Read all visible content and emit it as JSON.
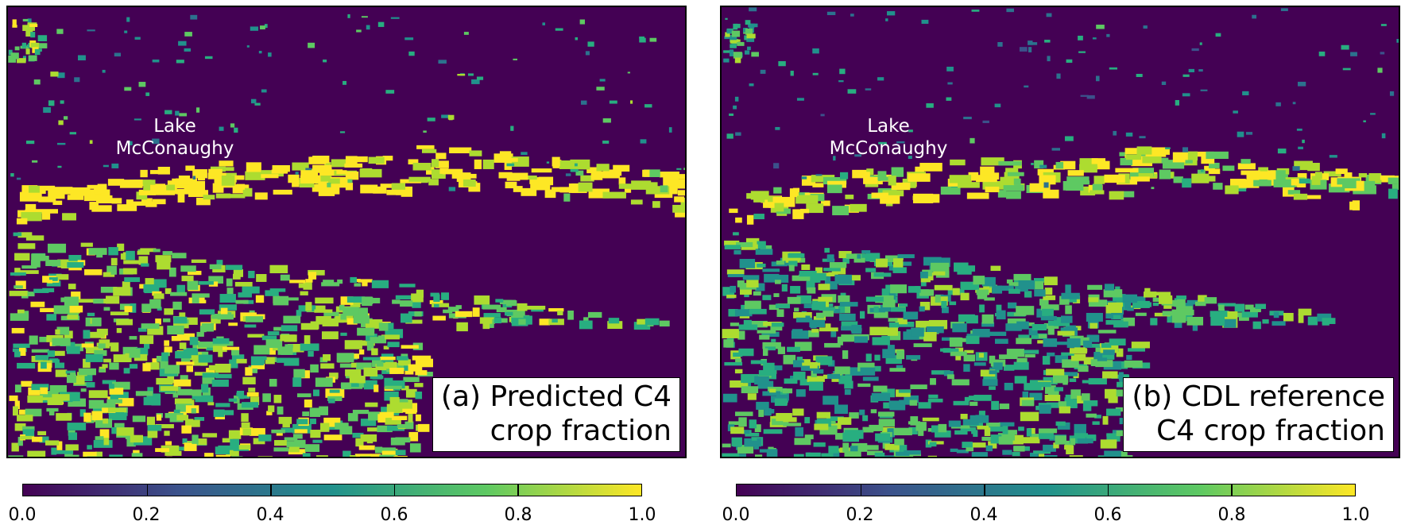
{
  "panels": [
    {
      "id": "a",
      "caption": "(a) Predicted C4\ncrop fraction",
      "lake_label": "Lake\nMcConaughy"
    },
    {
      "id": "b",
      "caption": "(b) CDL reference\nC4 crop fraction",
      "lake_label": "Lake\nMcConaughy"
    }
  ],
  "colorbar": {
    "colormap": "viridis",
    "min": 0.0,
    "max": 1.0,
    "ticks": [
      "0.0",
      "0.2",
      "0.4",
      "0.6",
      "0.8",
      "1.0"
    ],
    "stops": [
      "#440154",
      "#3b528b",
      "#21918c",
      "#5ec962",
      "#fde725"
    ]
  }
}
